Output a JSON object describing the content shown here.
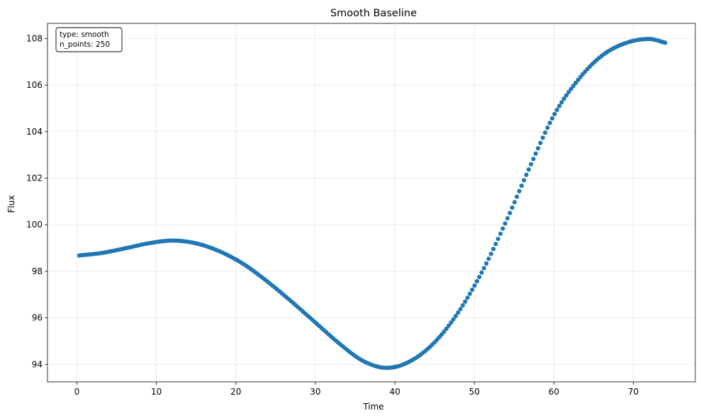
{
  "chart_data": {
    "type": "scatter",
    "title": "Smooth Baseline",
    "xlabel": "Time",
    "ylabel": "Flux",
    "xlim": [
      -3.7,
      77.8
    ],
    "ylim": [
      93.25,
      108.65
    ],
    "xticks": [
      0,
      10,
      20,
      30,
      40,
      50,
      60,
      70
    ],
    "yticks": [
      94,
      96,
      98,
      100,
      102,
      104,
      106,
      108
    ],
    "grid": true,
    "marker_color": "#1f77b4",
    "annotation": {
      "lines": [
        "type: smooth",
        "n_points: 250"
      ],
      "placement": "top-left"
    },
    "n_points": 250,
    "x_range": [
      0.3,
      74.0
    ],
    "curve_keypoints": {
      "x": [
        0.3,
        3,
        6,
        9,
        12,
        15,
        18,
        21,
        24,
        27,
        30,
        33,
        36,
        39,
        42,
        45,
        48,
        51,
        54,
        57,
        60,
        63,
        66,
        69,
        72,
        74
      ],
      "y": [
        98.68,
        98.78,
        98.98,
        99.2,
        99.32,
        99.2,
        98.85,
        98.3,
        97.55,
        96.7,
        95.8,
        94.9,
        94.15,
        93.85,
        94.15,
        94.95,
        96.25,
        98.0,
        100.15,
        102.5,
        104.7,
        106.2,
        107.25,
        107.8,
        107.98,
        107.82
      ]
    }
  }
}
